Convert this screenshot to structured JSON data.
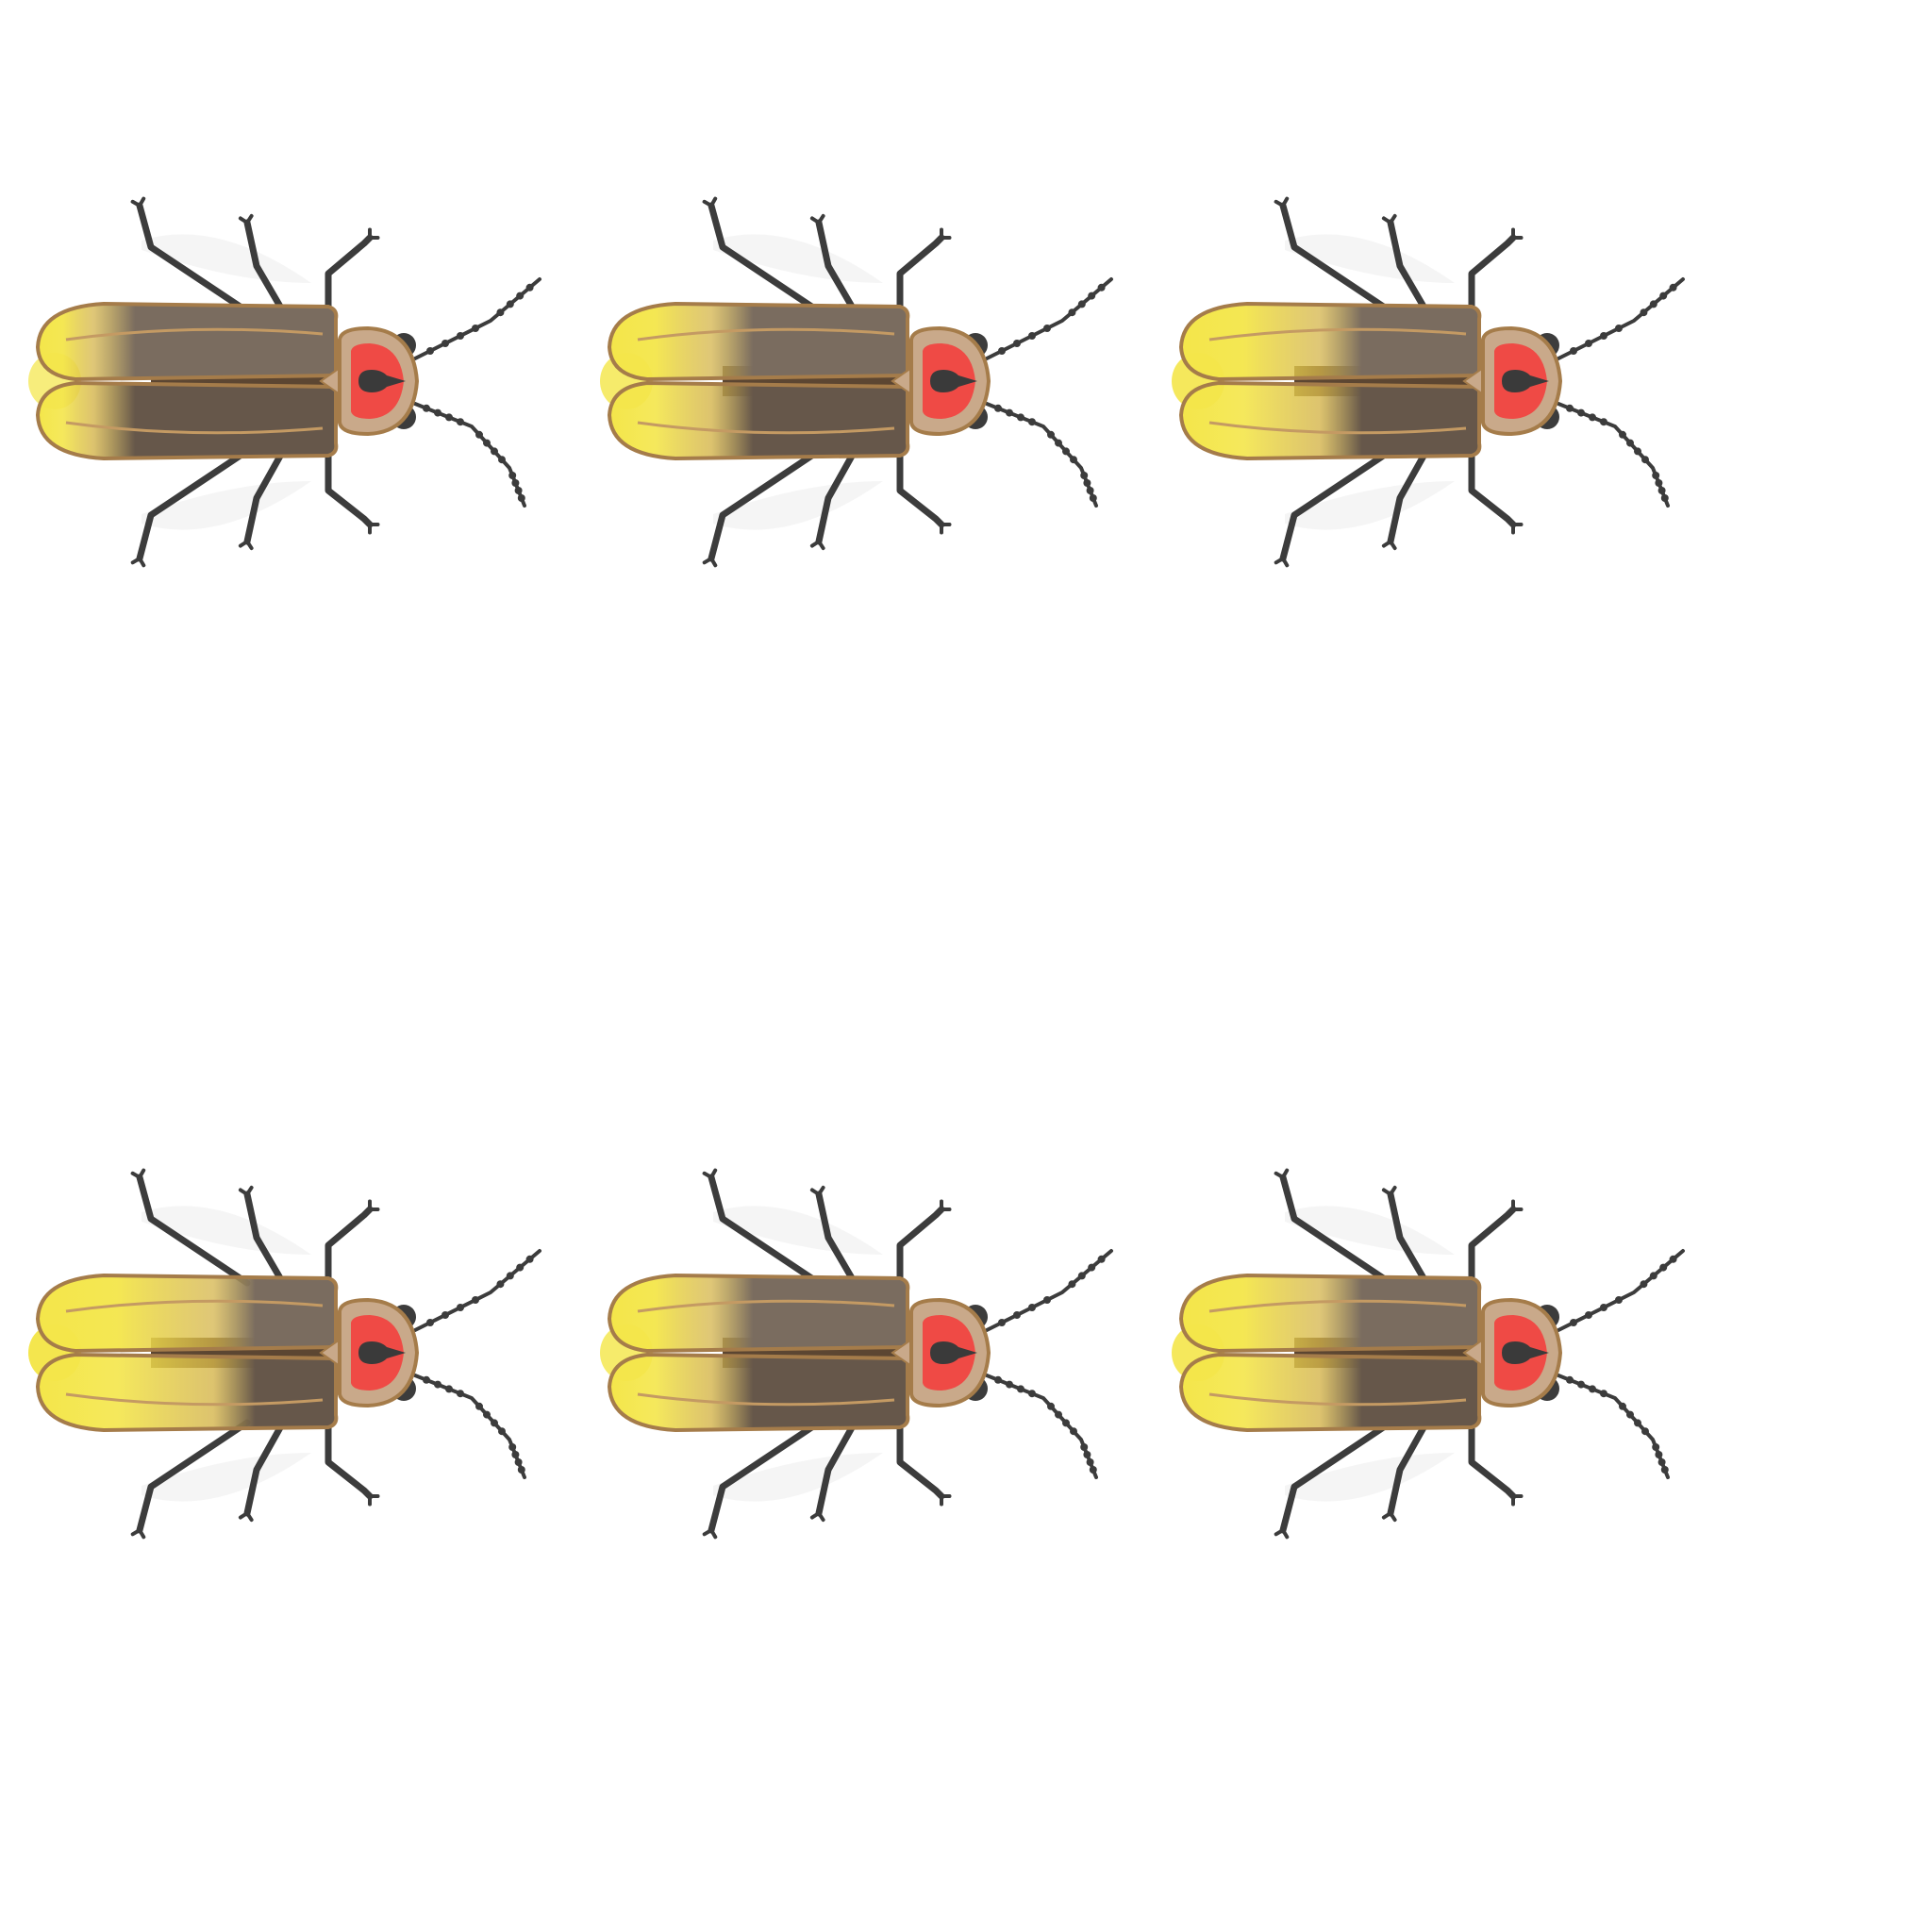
{
  "scene": {
    "description_free": true,
    "background_color": "#ffffff",
    "firefly_count": 6,
    "rows": 2,
    "columns": 3
  },
  "colors": {
    "elytra_brown": "#7a6c5f",
    "elytra_dark": "#66574a",
    "elytra_outline": "#a57c4a",
    "elytra_seam": "#c49a63",
    "glow_yellow": "#f4e64a",
    "glow_amber": "#d4b44a",
    "pronotum_tan": "#c9a98a",
    "pronotum_red": "#ef4a45",
    "pronotum_spot": "#3a3a3a",
    "leg_dark": "#3c3c3c",
    "wing_translucent": "#f2f2f2",
    "abdomen_brown": "#5c4632"
  },
  "fireflies": [
    {
      "id": "firefly-1",
      "glow_level": 0.3
    },
    {
      "id": "firefly-2",
      "glow_level": 0.55
    },
    {
      "id": "firefly-3",
      "glow_level": 0.75
    },
    {
      "id": "firefly-4",
      "glow_level": 0.95
    },
    {
      "id": "firefly-5",
      "glow_level": 0.55
    },
    {
      "id": "firefly-6",
      "glow_level": 0.75
    }
  ]
}
